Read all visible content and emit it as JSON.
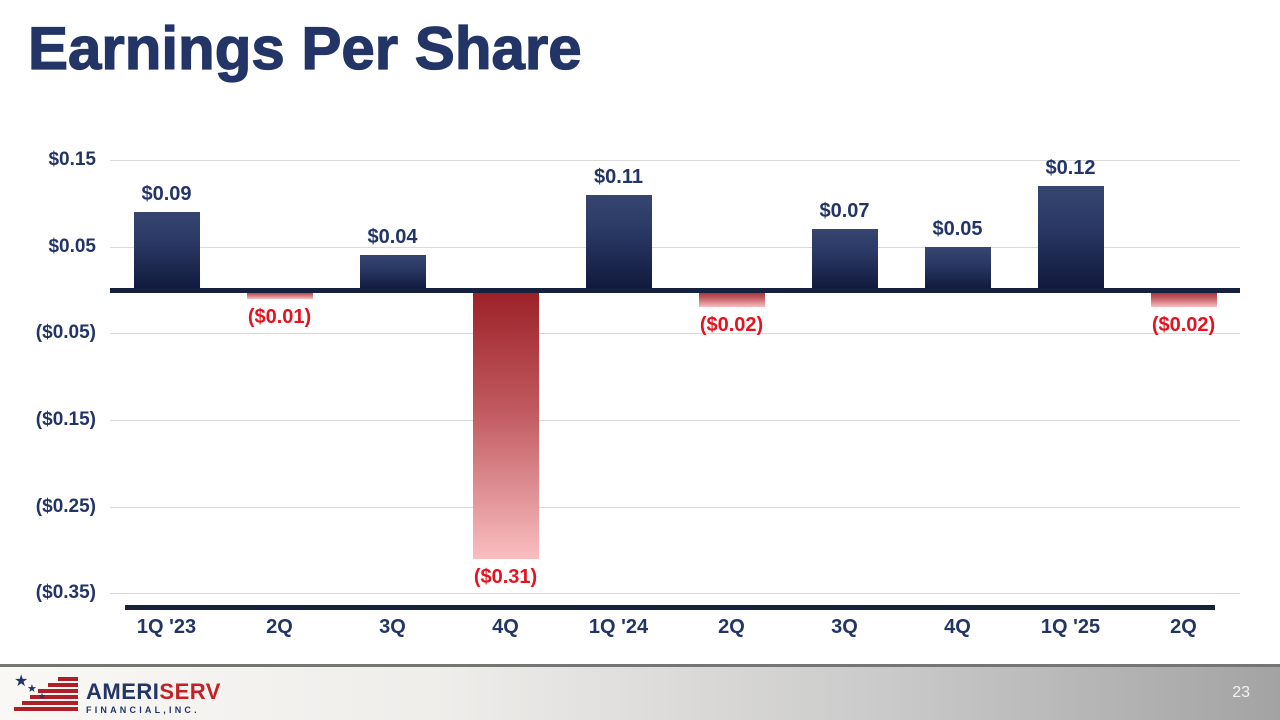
{
  "page": {
    "title": "Earnings Per Share",
    "page_number": "23"
  },
  "footer": {
    "logo": {
      "name_primary": "AMERI",
      "name_accent": "SERV",
      "subtitle": "FINANCIAL,INC.",
      "star_glyph": "★"
    }
  },
  "chart_data": {
    "type": "bar",
    "title": "Earnings Per Share",
    "categories": [
      "1Q '23",
      "2Q",
      "3Q",
      "4Q",
      "1Q '24",
      "2Q",
      "3Q",
      "4Q",
      "1Q '25",
      "2Q"
    ],
    "values": [
      0.09,
      -0.01,
      0.04,
      -0.31,
      0.11,
      -0.02,
      0.07,
      0.05,
      0.12,
      -0.02
    ],
    "value_labels": [
      "$0.09",
      "($0.01)",
      "$0.04",
      "($0.31)",
      "$0.11",
      "($0.02)",
      "$0.07",
      "$0.05",
      "$0.12",
      "($0.02)"
    ],
    "y_ticks": [
      0.15,
      0.05,
      -0.05,
      -0.15,
      -0.25,
      -0.35
    ],
    "y_tick_labels": [
      "$0.15",
      "$0.05",
      "($0.05)",
      "($0.15)",
      "($0.25)",
      "($0.35)"
    ],
    "ylim": [
      -0.37,
      0.17
    ],
    "xlabel": "",
    "ylabel": "",
    "grid": true,
    "legend": false,
    "colors": {
      "positive_bar_top": "#36466f",
      "positive_bar_bottom": "#10193c",
      "negative_bar_top": "#9b2026",
      "negative_bar_bottom": "#f9bec0",
      "positive_label_text": "#223566",
      "negative_label_text": "#e4131f",
      "axis_line": "#16203f",
      "gridline": "#d9d9d9",
      "tick_text": "#223566"
    }
  }
}
